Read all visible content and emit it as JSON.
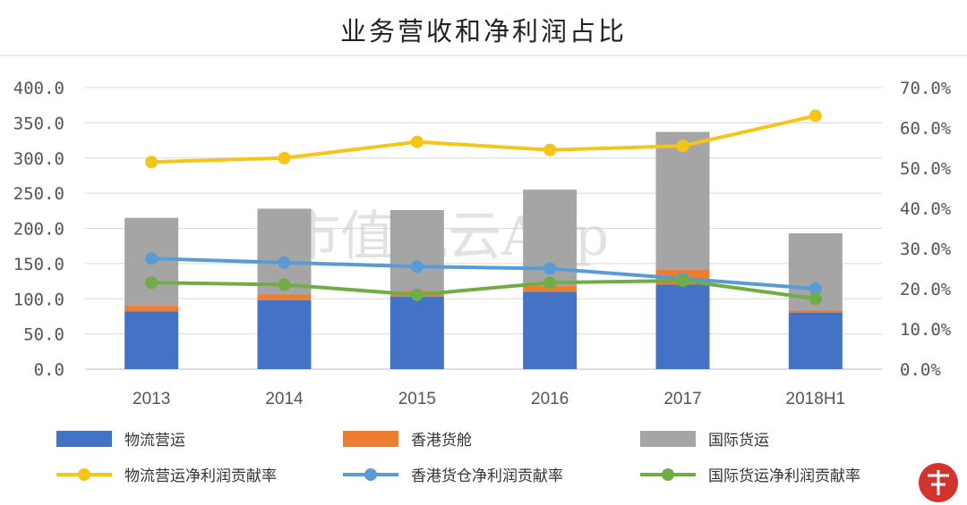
{
  "chart_data": {
    "type": "bar",
    "title": "业务营收和净利润占比",
    "watermark": "市值风云App",
    "categories": [
      "2013",
      "2014",
      "2015",
      "2016",
      "2017",
      "2018H1"
    ],
    "y_left": {
      "ylim": [
        0,
        400
      ],
      "ticks": [
        "0.0",
        "50.0",
        "100.0",
        "150.0",
        "200.0",
        "250.0",
        "300.0",
        "350.0",
        "400.0"
      ]
    },
    "y_right": {
      "ylim": [
        0,
        70
      ],
      "ticks": [
        "0.0%",
        "10.0%",
        "20.0%",
        "30.0%",
        "40.0%",
        "50.0%",
        "60.0%",
        "70.0%"
      ]
    },
    "bar_series": [
      {
        "name": "物流营运",
        "color": "#4472c4",
        "values": [
          82,
          98,
          103,
          110,
          120,
          80
        ]
      },
      {
        "name": "香港货舱",
        "color": "#ed7d31",
        "values": [
          8,
          8,
          8,
          8,
          22,
          4
        ]
      },
      {
        "name": "国际货运",
        "color": "#a5a5a5",
        "values": [
          125,
          122,
          115,
          137,
          195,
          109
        ]
      }
    ],
    "line_series": [
      {
        "name": "物流营运净利润贡献率",
        "color": "#f5c518",
        "values": [
          51.5,
          52.5,
          56.5,
          54.5,
          55.5,
          63
        ]
      },
      {
        "name": "香港货仓净利润贡献率",
        "color": "#5b9bd5",
        "values": [
          27.5,
          26.5,
          25.5,
          25,
          22.5,
          20
        ]
      },
      {
        "name": "国际货运净利润贡献率",
        "color": "#70ad47",
        "values": [
          21.5,
          21,
          18.5,
          21.5,
          22,
          17.5
        ]
      }
    ],
    "grid": true,
    "legend_position": "bottom"
  },
  "badge_color": "#d0342c"
}
